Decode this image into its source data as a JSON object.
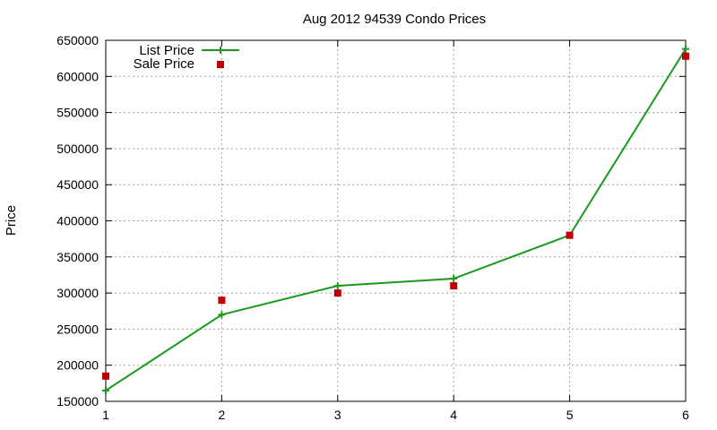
{
  "chart_data": {
    "type": "line",
    "title": "Aug 2012 94539 Condo Prices",
    "xlabel": "",
    "ylabel": "Price",
    "x": [
      1,
      2,
      3,
      4,
      5,
      6
    ],
    "xlim": [
      1,
      6
    ],
    "ylim": [
      150000,
      650000
    ],
    "x_ticks": [
      1,
      2,
      3,
      4,
      5,
      6
    ],
    "y_ticks": [
      150000,
      200000,
      250000,
      300000,
      350000,
      400000,
      450000,
      500000,
      550000,
      600000,
      650000
    ],
    "grid": true,
    "legend_position": "top-left",
    "series": [
      {
        "name": "List Price",
        "style": "line-with-plus-markers",
        "color": "#1a9a1a",
        "values": [
          165000,
          270000,
          310000,
          320000,
          380000,
          638000
        ]
      },
      {
        "name": "Sale Price",
        "style": "square-markers",
        "color": "#c00000",
        "values": [
          185000,
          290000,
          300000,
          310000,
          380000,
          628000
        ]
      }
    ]
  }
}
